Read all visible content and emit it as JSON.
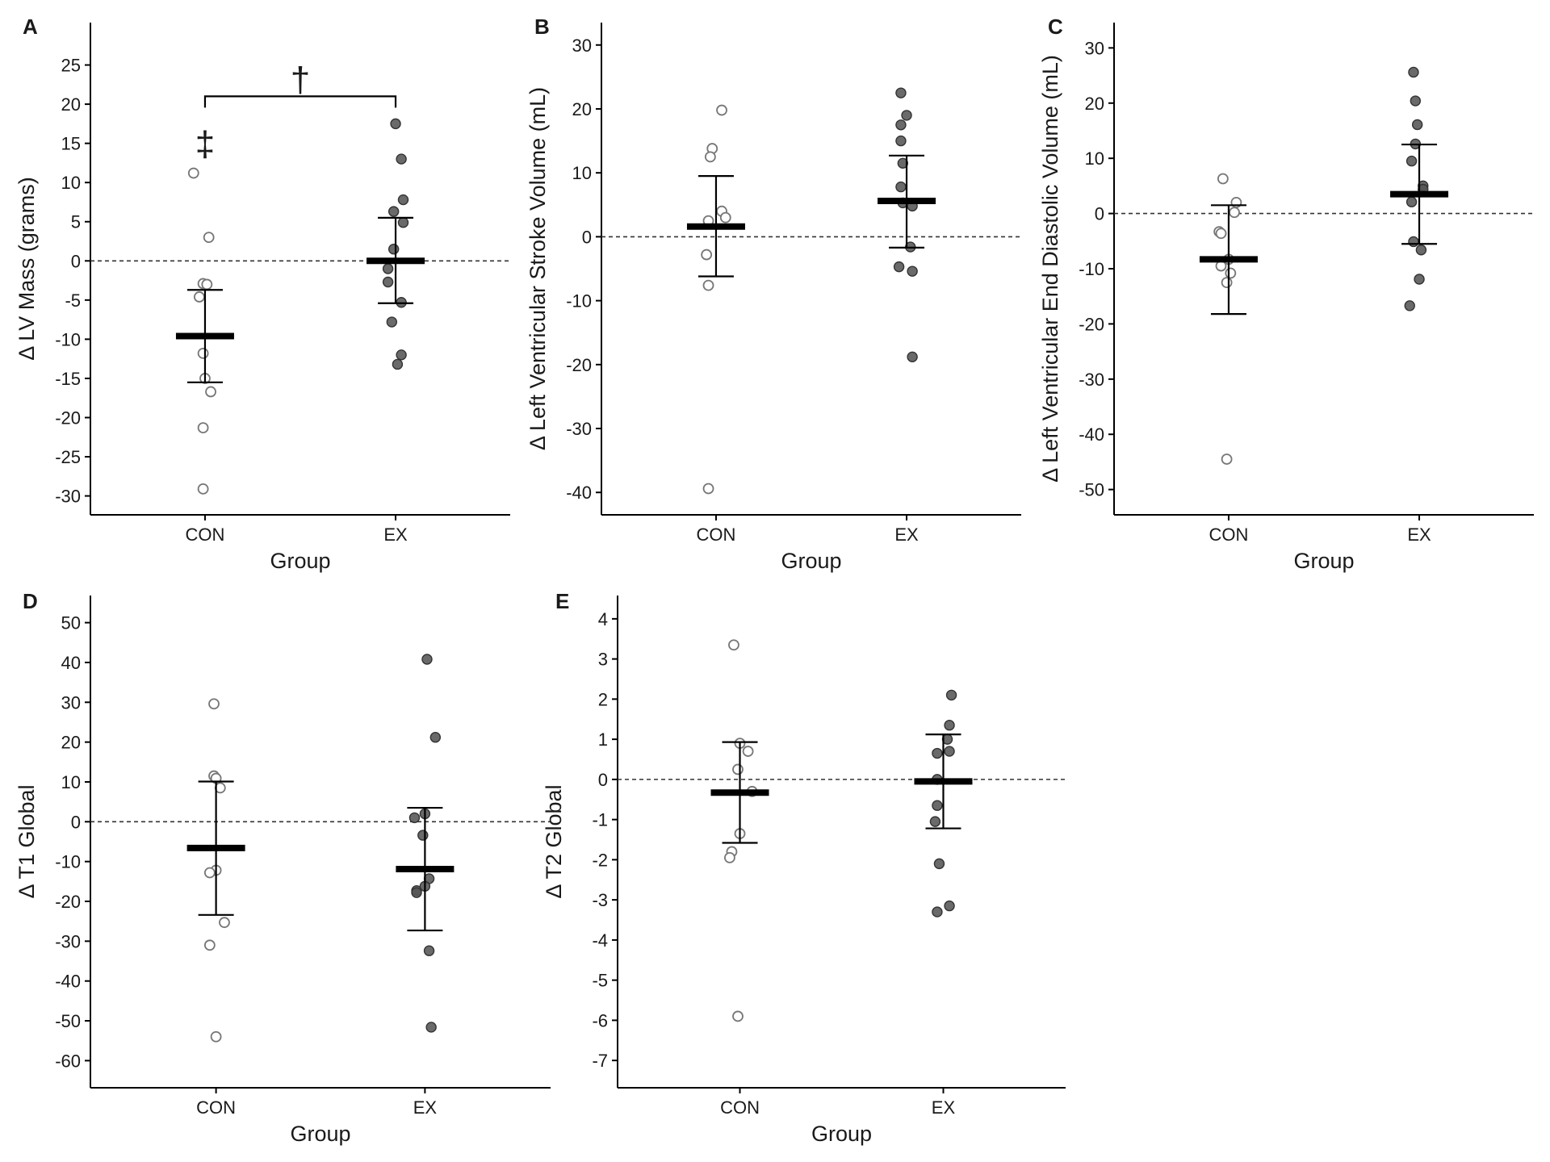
{
  "chart_data": [
    {
      "panel": "A",
      "type": "scatter",
      "ylabel": "Δ LV Mass (grams)",
      "xlabel": "Group",
      "categories": [
        "CON",
        "EX"
      ],
      "ylim": [
        -32,
        30
      ],
      "yticks": [
        25,
        20,
        15,
        10,
        5,
        0,
        -5,
        -10,
        -15,
        -20,
        -25,
        -30
      ],
      "zero_line": true,
      "series": [
        {
          "name": "CON",
          "values": [
            11.2,
            3.0,
            -2.9,
            -3.0,
            -4.6,
            -11.8,
            -15.0,
            -16.7,
            -21.3,
            -29.1
          ],
          "jitter": [
            -0.06,
            0.02,
            -0.01,
            0.01,
            -0.03,
            -0.01,
            0.0,
            0.03,
            -0.01,
            -0.01
          ],
          "mean": -9.6,
          "upper": -3.7,
          "lower": -15.5
        },
        {
          "name": "EX",
          "values": [
            17.5,
            13.0,
            7.8,
            6.3,
            4.9,
            1.5,
            -1.0,
            -2.7,
            -5.3,
            -7.8,
            -12.0,
            -13.2
          ],
          "jitter": [
            0.0,
            0.03,
            0.04,
            -0.01,
            0.04,
            -0.01,
            -0.04,
            -0.04,
            0.03,
            -0.02,
            0.03,
            0.01
          ],
          "mean": 0.0,
          "upper": 5.5,
          "lower": -5.4
        }
      ],
      "annotations": [
        {
          "symbol": "‡",
          "x": "CON",
          "y": 15.5
        },
        {
          "symbol": "†",
          "bracket": [
            "CON",
            "EX"
          ],
          "y": 21
        }
      ]
    },
    {
      "panel": "B",
      "type": "scatter",
      "ylabel": "Δ Left Ventricular Stroke Volume (mL)",
      "xlabel": "Group",
      "categories": [
        "CON",
        "EX"
      ],
      "ylim": [
        -43,
        33
      ],
      "yticks": [
        30,
        20,
        10,
        0,
        -10,
        -20,
        -30,
        -40
      ],
      "zero_line": true,
      "series": [
        {
          "name": "CON",
          "values": [
            19.8,
            13.8,
            12.5,
            4.0,
            3.0,
            2.5,
            -2.8,
            -7.6,
            -39.4
          ],
          "jitter": [
            0.03,
            -0.02,
            -0.03,
            0.03,
            0.05,
            -0.04,
            -0.05,
            -0.04,
            -0.04
          ],
          "mean": 1.6,
          "upper": 9.5,
          "lower": -6.2
        },
        {
          "name": "EX",
          "values": [
            22.5,
            19.0,
            17.5,
            15.0,
            11.5,
            7.8,
            5.3,
            4.8,
            -1.6,
            -4.7,
            -5.4,
            -18.8
          ],
          "jitter": [
            -0.03,
            0.0,
            -0.03,
            -0.03,
            -0.02,
            -0.03,
            -0.02,
            0.03,
            0.02,
            -0.04,
            0.03,
            0.03
          ],
          "mean": 5.6,
          "upper": 12.7,
          "lower": -1.7
        }
      ]
    },
    {
      "panel": "C",
      "type": "scatter",
      "ylabel": "Δ Left Ventricular End Diastolic Volume (mL)",
      "xlabel": "Group",
      "categories": [
        "CON",
        "EX"
      ],
      "ylim": [
        -54,
        34
      ],
      "yticks": [
        30,
        20,
        10,
        0,
        -10,
        -20,
        -30,
        -40,
        -50
      ],
      "zero_line": true,
      "series": [
        {
          "name": "CON",
          "values": [
            6.3,
            2.0,
            0.2,
            -3.3,
            -3.6,
            -8.3,
            -9.5,
            -10.8,
            -12.5,
            -44.5
          ],
          "jitter": [
            -0.03,
            0.04,
            0.03,
            -0.05,
            -0.04,
            0.0,
            -0.04,
            0.01,
            -0.01,
            -0.01
          ],
          "mean": -8.3,
          "upper": 1.5,
          "lower": -18.2
        },
        {
          "name": "EX",
          "values": [
            25.6,
            20.4,
            16.1,
            12.6,
            9.5,
            5.0,
            4.4,
            2.1,
            -5.1,
            -6.6,
            -11.9,
            -16.7
          ],
          "jitter": [
            -0.03,
            -0.02,
            -0.01,
            -0.02,
            -0.04,
            0.02,
            0.02,
            -0.04,
            -0.03,
            0.01,
            0.0,
            -0.05
          ],
          "mean": 3.5,
          "upper": 12.5,
          "lower": -5.5
        }
      ]
    },
    {
      "panel": "D",
      "type": "scatter",
      "ylabel": "Δ T1 Global",
      "xlabel": "Group",
      "categories": [
        "CON",
        "EX"
      ],
      "ylim": [
        -66,
        56
      ],
      "yticks": [
        50,
        40,
        30,
        20,
        10,
        0,
        -10,
        -20,
        -30,
        -40,
        -50,
        -60
      ],
      "zero_line": true,
      "series": [
        {
          "name": "CON",
          "values": [
            29.6,
            11.5,
            10.9,
            8.5,
            -12.2,
            -12.8,
            -25.3,
            -31.0,
            -54.0
          ],
          "jitter": [
            -0.01,
            -0.01,
            0.0,
            0.02,
            0.0,
            -0.03,
            0.04,
            -0.03,
            0.0
          ],
          "mean": -6.6,
          "upper": 10.1,
          "lower": -23.4
        },
        {
          "name": "EX",
          "values": [
            40.8,
            21.2,
            2.0,
            1.0,
            -3.4,
            -14.3,
            -16.2,
            -17.3,
            -17.8,
            -32.4,
            -51.6
          ],
          "jitter": [
            0.01,
            0.05,
            0.0,
            -0.05,
            -0.01,
            0.02,
            0.0,
            -0.04,
            -0.04,
            0.02,
            0.03
          ],
          "mean": -11.9,
          "upper": 3.5,
          "lower": -27.3
        }
      ]
    },
    {
      "panel": "E",
      "type": "scatter",
      "ylabel": "Δ T2 Global",
      "xlabel": "Group",
      "categories": [
        "CON",
        "EX"
      ],
      "ylim": [
        -7.6,
        4.5
      ],
      "yticks": [
        4,
        3,
        2,
        1,
        0,
        -1,
        -2,
        -3,
        -4,
        -5,
        -6,
        -7
      ],
      "zero_line": true,
      "series": [
        {
          "name": "CON",
          "values": [
            3.35,
            0.9,
            0.7,
            0.25,
            -0.3,
            -1.35,
            -1.8,
            -1.95,
            -5.9
          ],
          "jitter": [
            -0.03,
            0.0,
            0.04,
            -0.01,
            0.06,
            0.0,
            -0.04,
            -0.05,
            -0.01
          ],
          "mean": -0.33,
          "upper": 0.93,
          "lower": -1.58
        },
        {
          "name": "EX",
          "values": [
            2.1,
            1.35,
            1.0,
            0.7,
            0.65,
            0.0,
            -0.65,
            -1.05,
            -2.1,
            -3.15,
            -3.3
          ],
          "jitter": [
            0.04,
            0.03,
            0.02,
            0.03,
            -0.03,
            -0.03,
            -0.03,
            -0.04,
            -0.02,
            0.03,
            -0.03
          ],
          "mean": -0.05,
          "upper": 1.12,
          "lower": -1.22
        }
      ]
    }
  ]
}
